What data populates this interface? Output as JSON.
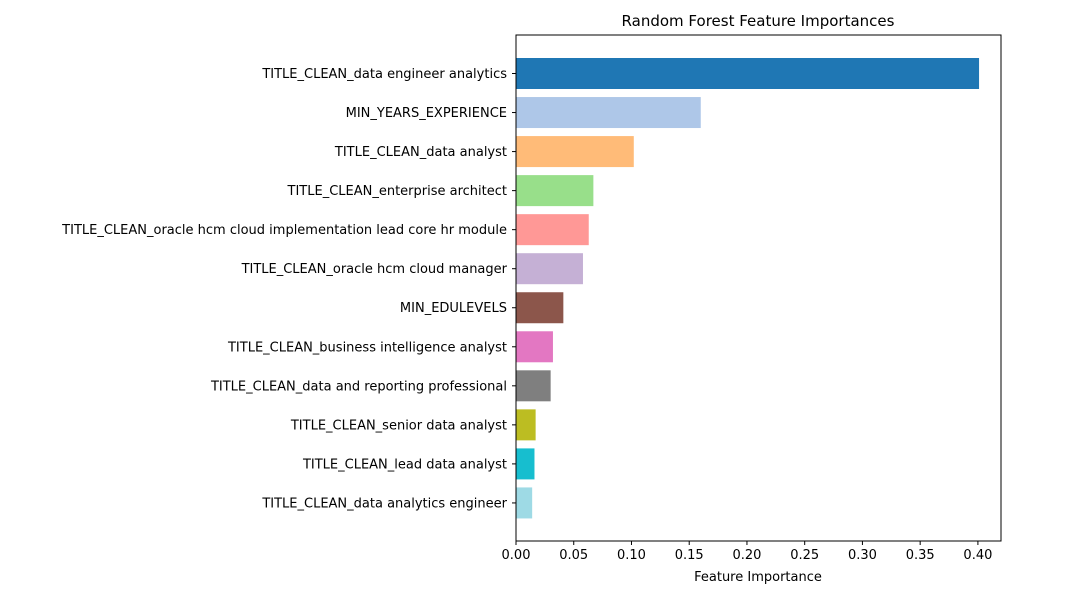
{
  "chart_data": {
    "type": "bar",
    "orientation": "horizontal",
    "title": "Random Forest Feature Importances",
    "xlabel": "Feature Importance",
    "ylabel": "",
    "xlim": [
      0,
      0.42
    ],
    "x_ticks": [
      "0.00",
      "0.05",
      "0.10",
      "0.15",
      "0.20",
      "0.25",
      "0.30",
      "0.35",
      "0.40"
    ],
    "grid": false,
    "categories": [
      "TITLE_CLEAN_data engineer analytics",
      "MIN_YEARS_EXPERIENCE",
      "TITLE_CLEAN_data analyst",
      "TITLE_CLEAN_enterprise architect",
      "TITLE_CLEAN_oracle hcm cloud implementation lead core hr module",
      "TITLE_CLEAN_oracle hcm cloud manager",
      "MIN_EDULEVELS",
      "TITLE_CLEAN_business intelligence analyst",
      "TITLE_CLEAN_data and reporting professional",
      "TITLE_CLEAN_senior data analyst",
      "TITLE_CLEAN_lead data analyst",
      "TITLE_CLEAN_data analytics engineer"
    ],
    "values": [
      0.401,
      0.16,
      0.102,
      0.067,
      0.063,
      0.058,
      0.041,
      0.032,
      0.03,
      0.017,
      0.016,
      0.014
    ],
    "colors": [
      "#1f77b4",
      "#aec7e8",
      "#ffbb78",
      "#98df8a",
      "#ff9896",
      "#c5b0d5",
      "#8c564b",
      "#e377c2",
      "#7f7f7f",
      "#bcbd22",
      "#17becf",
      "#9edae5"
    ]
  }
}
